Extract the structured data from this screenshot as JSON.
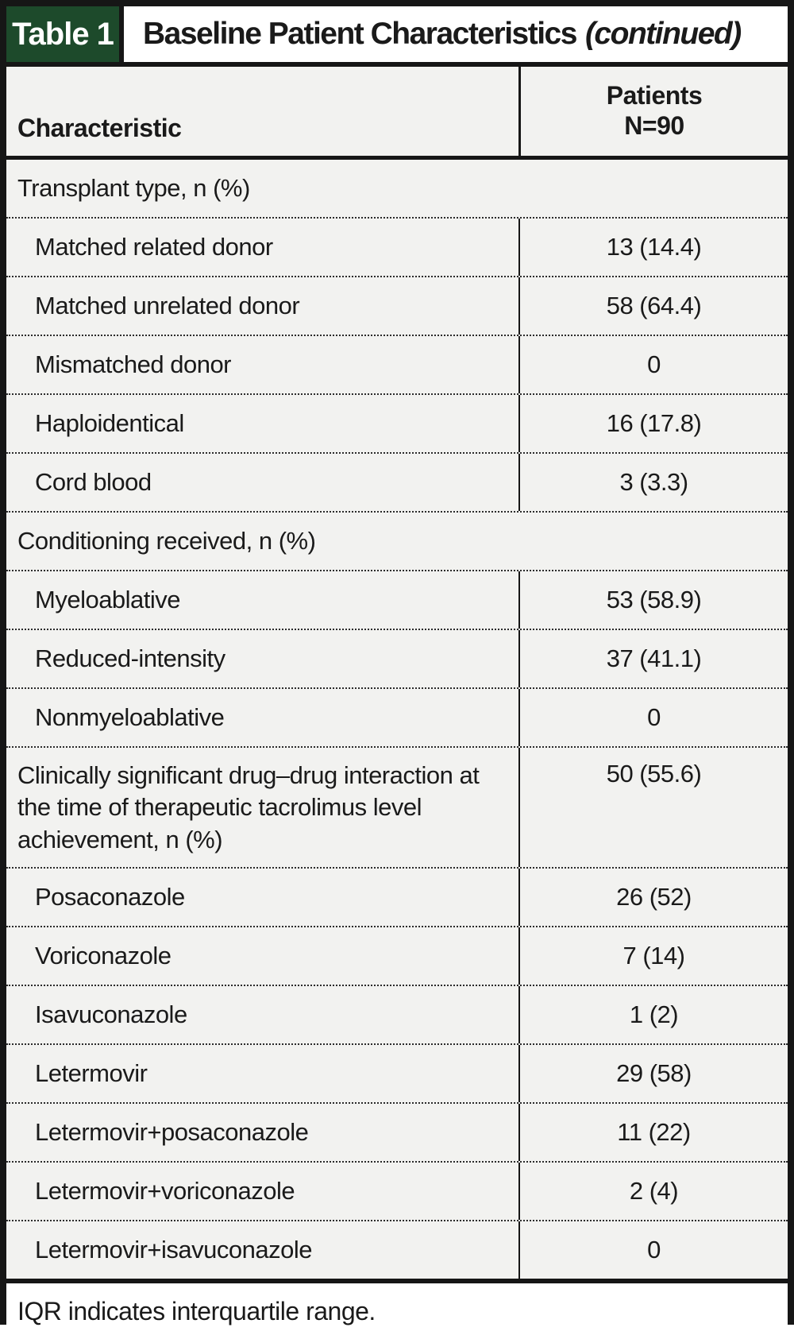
{
  "table": {
    "tag": "Table 1",
    "title": "Baseline Patient Characteristics",
    "title_suffix": "(continued)",
    "columns": {
      "characteristic": "Characteristic",
      "patients_line1": "Patients",
      "patients_line2": "N=90"
    },
    "rows": [
      {
        "type": "section",
        "label": "Transplant type, n (%)",
        "value": ""
      },
      {
        "type": "item",
        "label": "Matched related donor",
        "value": "13 (14.4)"
      },
      {
        "type": "item",
        "label": "Matched unrelated donor",
        "value": "58 (64.4)"
      },
      {
        "type": "item",
        "label": "Mismatched donor",
        "value": "0"
      },
      {
        "type": "item",
        "label": "Haploidentical",
        "value": "16 (17.8)"
      },
      {
        "type": "item",
        "label": "Cord blood",
        "value": "3 (3.3)"
      },
      {
        "type": "section",
        "label": "Conditioning received, n (%)",
        "value": ""
      },
      {
        "type": "item",
        "label": "Myeloablative",
        "value": "53 (58.9)"
      },
      {
        "type": "item",
        "label": "Reduced-intensity",
        "value": "37 (41.1)"
      },
      {
        "type": "item",
        "label": "Nonmyeloablative",
        "value": "0"
      },
      {
        "type": "wide",
        "label": "Clinically significant drug–drug interaction at the time of therapeutic tacrolimus level achievement, n (%)",
        "value": "50 (55.6)"
      },
      {
        "type": "item",
        "label": "Posaconazole",
        "value": "26 (52)"
      },
      {
        "type": "item",
        "label": "Voriconazole",
        "value": "7 (14)"
      },
      {
        "type": "item",
        "label": "Isavuconazole",
        "value": "1 (2)"
      },
      {
        "type": "item",
        "label": "Letermovir",
        "value": "29 (58)"
      },
      {
        "type": "item",
        "label": "Letermovir+posaconazole",
        "value": "11 (22)"
      },
      {
        "type": "item",
        "label": "Letermovir+voriconazole",
        "value": "2 (4)"
      },
      {
        "type": "item",
        "label": "Letermovir+isavuconazole",
        "value": "0"
      }
    ],
    "footnote": "IQR indicates interquartile range.",
    "colors": {
      "tag_green": "#1d4a2b",
      "row_bg": "#f2f2f0",
      "border_black": "#161616"
    }
  }
}
